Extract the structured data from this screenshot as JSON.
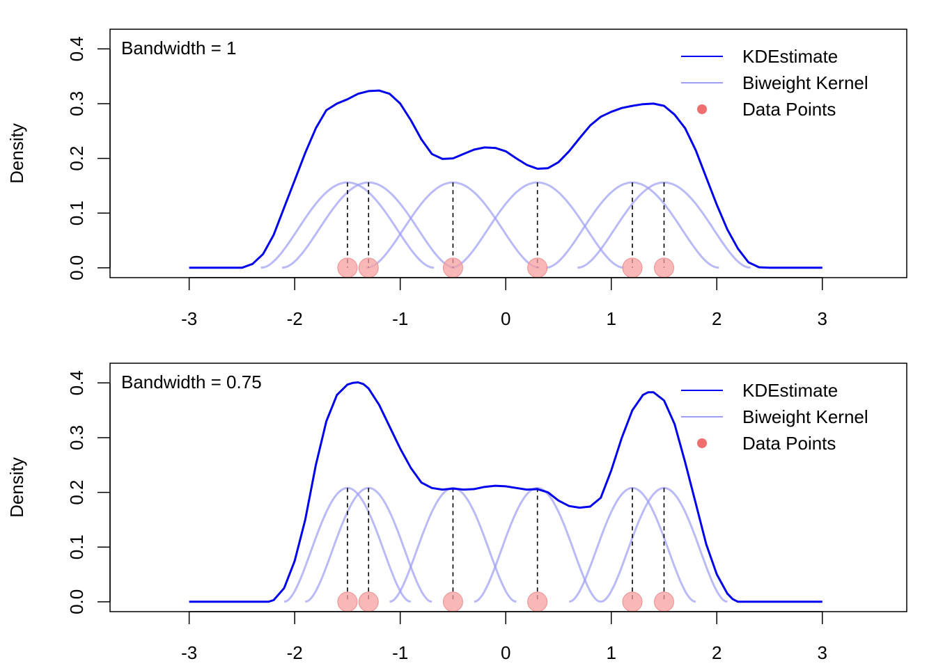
{
  "chart_data": [
    {
      "type": "line",
      "annotation": "Bandwidth = 1",
      "bandwidth": 1,
      "xlabel": "",
      "ylabel": "Density",
      "xlim": [
        -3.75,
        3.8
      ],
      "ylim": [
        -0.018,
        0.436
      ],
      "x_ticks": [
        -3,
        -2,
        -1,
        0,
        1,
        2,
        3
      ],
      "y_ticks": [
        0.0,
        0.1,
        0.2,
        0.3,
        0.4
      ],
      "grid": false,
      "legend": {
        "position": "top-right",
        "entries": [
          {
            "label": "KDEstimate",
            "kind": "line",
            "color": "#0000ee"
          },
          {
            "label": "Biweight Kernel",
            "kind": "line",
            "color": "#9d9df5"
          },
          {
            "label": "Data Points",
            "kind": "point",
            "color": "#ee5555"
          }
        ]
      },
      "data_points": [
        -1.5,
        -1.3,
        -0.5,
        0.3,
        1.2,
        1.5
      ],
      "kernel_peak": 0.156,
      "kernel_halfwidth": 0.82,
      "series": [
        {
          "name": "KDEstimate",
          "x": [
            -3.0,
            -2.5,
            -2.4,
            -2.3,
            -2.2,
            -2.1,
            -2.0,
            -1.9,
            -1.8,
            -1.7,
            -1.6,
            -1.5,
            -1.4,
            -1.3,
            -1.2,
            -1.1,
            -1.0,
            -0.9,
            -0.8,
            -0.7,
            -0.6,
            -0.5,
            -0.4,
            -0.3,
            -0.2,
            -0.1,
            0.0,
            0.1,
            0.2,
            0.3,
            0.4,
            0.5,
            0.6,
            0.7,
            0.8,
            0.9,
            1.0,
            1.1,
            1.2,
            1.3,
            1.4,
            1.5,
            1.6,
            1.7,
            1.8,
            1.9,
            2.0,
            2.1,
            2.2,
            2.3,
            2.4,
            2.5,
            3.0
          ],
          "y": [
            0.0,
            0.0,
            0.007,
            0.025,
            0.06,
            0.11,
            0.16,
            0.21,
            0.255,
            0.288,
            0.3,
            0.308,
            0.318,
            0.323,
            0.324,
            0.318,
            0.3,
            0.27,
            0.235,
            0.208,
            0.199,
            0.2,
            0.208,
            0.216,
            0.22,
            0.219,
            0.213,
            0.2,
            0.188,
            0.181,
            0.182,
            0.193,
            0.213,
            0.237,
            0.26,
            0.276,
            0.285,
            0.292,
            0.296,
            0.299,
            0.3,
            0.296,
            0.28,
            0.255,
            0.215,
            0.165,
            0.115,
            0.07,
            0.035,
            0.01,
            0.001,
            0.0,
            0.0
          ]
        }
      ]
    },
    {
      "type": "line",
      "annotation": "Bandwidth = 0.75",
      "bandwidth": 0.75,
      "xlabel": "",
      "ylabel": "Density",
      "xlim": [
        -3.75,
        3.8
      ],
      "ylim": [
        -0.018,
        0.436
      ],
      "x_ticks": [
        -3,
        -2,
        -1,
        0,
        1,
        2,
        3
      ],
      "y_ticks": [
        0.0,
        0.1,
        0.2,
        0.3,
        0.4
      ],
      "grid": false,
      "legend": {
        "position": "top-right",
        "entries": [
          {
            "label": "KDEstimate",
            "kind": "line",
            "color": "#0000ee"
          },
          {
            "label": "Biweight Kernel",
            "kind": "line",
            "color": "#9d9df5"
          },
          {
            "label": "Data Points",
            "kind": "point",
            "color": "#ee5555"
          }
        ]
      },
      "data_points": [
        -1.5,
        -1.3,
        -0.5,
        0.3,
        1.2,
        1.5
      ],
      "kernel_peak": 0.208,
      "kernel_halfwidth": 0.6,
      "series": [
        {
          "name": "KDEstimate",
          "x": [
            -3.0,
            -2.25,
            -2.2,
            -2.1,
            -2.0,
            -1.9,
            -1.8,
            -1.7,
            -1.6,
            -1.5,
            -1.45,
            -1.4,
            -1.35,
            -1.3,
            -1.2,
            -1.1,
            -1.0,
            -0.9,
            -0.8,
            -0.7,
            -0.6,
            -0.5,
            -0.4,
            -0.3,
            -0.2,
            -0.1,
            0.0,
            0.1,
            0.2,
            0.3,
            0.4,
            0.5,
            0.6,
            0.7,
            0.8,
            0.9,
            1.0,
            1.1,
            1.2,
            1.3,
            1.35,
            1.4,
            1.5,
            1.6,
            1.7,
            1.8,
            1.9,
            2.0,
            2.1,
            2.15,
            2.2,
            2.3,
            3.0
          ],
          "y": [
            0.0,
            0.0,
            0.003,
            0.025,
            0.075,
            0.15,
            0.25,
            0.33,
            0.378,
            0.397,
            0.4,
            0.401,
            0.398,
            0.39,
            0.36,
            0.32,
            0.28,
            0.245,
            0.218,
            0.208,
            0.205,
            0.207,
            0.205,
            0.206,
            0.21,
            0.212,
            0.211,
            0.208,
            0.205,
            0.206,
            0.2,
            0.185,
            0.175,
            0.172,
            0.174,
            0.19,
            0.24,
            0.3,
            0.35,
            0.378,
            0.383,
            0.383,
            0.368,
            0.325,
            0.255,
            0.18,
            0.105,
            0.05,
            0.015,
            0.005,
            0.0,
            0.0,
            0.0
          ]
        }
      ]
    }
  ]
}
